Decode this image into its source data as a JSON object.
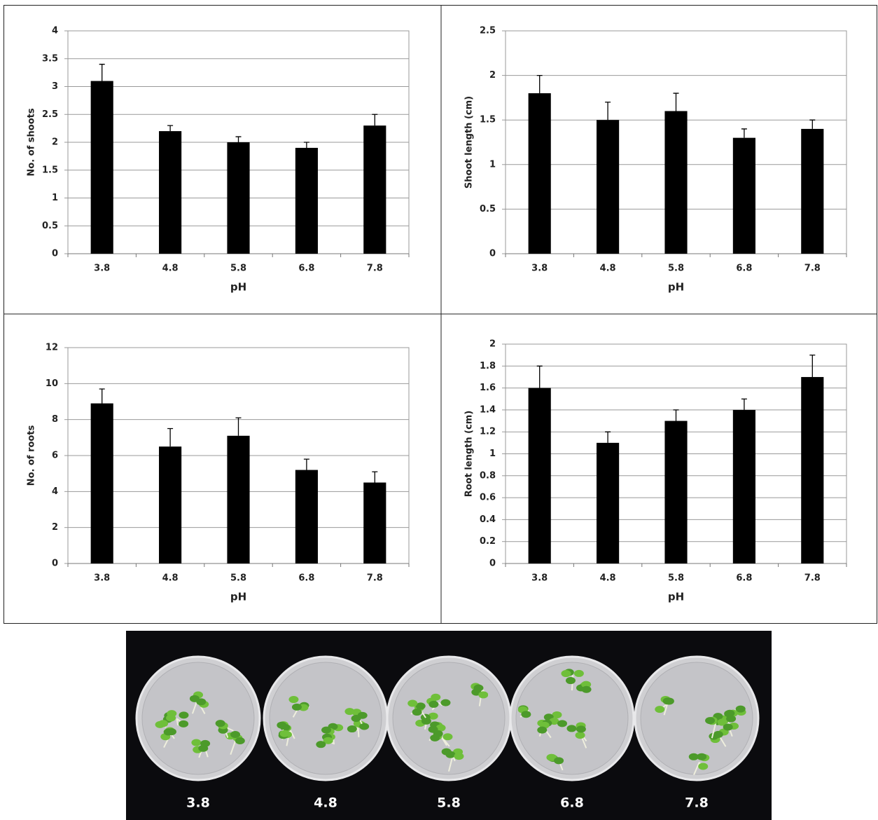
{
  "chart_data": [
    {
      "type": "bar",
      "x_label": "pH",
      "y_label": "No. of shoots",
      "categories": [
        "3.8",
        "4.8",
        "5.8",
        "6.8",
        "7.8"
      ],
      "values": [
        3.1,
        2.2,
        2.0,
        1.9,
        2.3
      ],
      "errors": [
        0.3,
        0.1,
        0.1,
        0.1,
        0.2
      ],
      "color": "#000000",
      "ylim": [
        0,
        4
      ],
      "yticks": [
        0,
        0.5,
        1,
        1.5,
        2,
        2.5,
        3,
        3.5,
        4
      ],
      "grid": true
    },
    {
      "type": "bar",
      "x_label": "pH",
      "y_label": "Shoot length (cm)",
      "categories": [
        "3.8",
        "4.8",
        "5.8",
        "6.8",
        "7.8"
      ],
      "values": [
        1.8,
        1.5,
        1.6,
        1.3,
        1.4
      ],
      "errors": [
        0.2,
        0.2,
        0.2,
        0.1,
        0.1
      ],
      "color": "#000000",
      "ylim": [
        0,
        2.5
      ],
      "yticks": [
        0,
        0.5,
        1,
        1.5,
        2,
        2.5
      ],
      "grid": true
    },
    {
      "type": "bar",
      "x_label": "pH",
      "y_label": "No. of roots",
      "categories": [
        "3.8",
        "4.8",
        "5.8",
        "6.8",
        "7.8"
      ],
      "values": [
        8.9,
        6.5,
        7.1,
        5.2,
        4.5
      ],
      "errors": [
        0.8,
        1.0,
        1.0,
        0.6,
        0.6
      ],
      "color": "#000000",
      "ylim": [
        0,
        12
      ],
      "yticks": [
        0,
        2,
        4,
        6,
        8,
        10,
        12
      ],
      "grid": true
    },
    {
      "type": "bar",
      "x_label": "pH",
      "y_label": "Root length (cm)",
      "categories": [
        "3.8",
        "4.8",
        "5.8",
        "6.8",
        "7.8"
      ],
      "values": [
        1.6,
        1.1,
        1.3,
        1.4,
        1.7
      ],
      "errors": [
        0.2,
        0.1,
        0.1,
        0.1,
        0.2
      ],
      "color": "#000000",
      "ylim": [
        0,
        2
      ],
      "yticks": [
        0,
        0.2,
        0.4,
        0.6,
        0.8,
        1,
        1.2,
        1.4,
        1.6,
        1.8,
        2
      ],
      "grid": true
    }
  ],
  "photo_labels": [
    "3.8",
    "4.8",
    "5.8",
    "6.8",
    "7.8"
  ]
}
